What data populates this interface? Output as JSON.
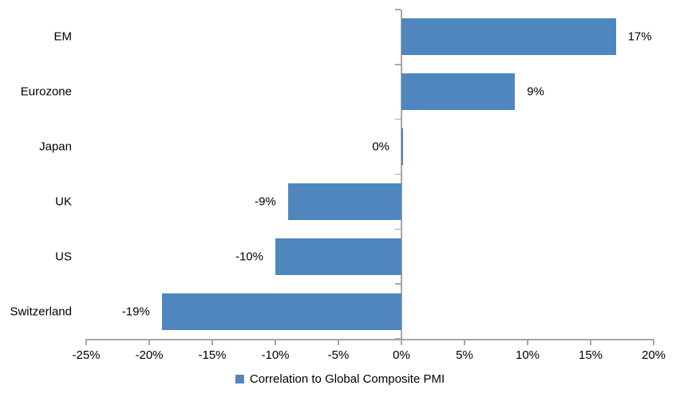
{
  "chart_data": {
    "type": "bar",
    "orientation": "horizontal",
    "title": "",
    "series_name": "Correlation to Global Composite PMI",
    "categories": [
      "EM",
      "Eurozone",
      "Japan",
      "UK",
      "US",
      "Switzerland"
    ],
    "values": [
      17,
      9,
      0,
      -9,
      -10,
      -19
    ],
    "value_labels": [
      "17%",
      "9%",
      "0%",
      "-9%",
      "-10%",
      "-19%"
    ],
    "xlim": [
      -25,
      20
    ],
    "x_tick_values": [
      -25,
      -20,
      -15,
      -10,
      -5,
      0,
      5,
      10,
      15,
      20
    ],
    "x_tick_labels": [
      "-25%",
      "-20%",
      "-15%",
      "-10%",
      "-5%",
      "0%",
      "5%",
      "10%",
      "15%",
      "20%"
    ],
    "grid": false,
    "legend_position": "bottom-center",
    "colors": {
      "bar": "#4E86BD",
      "axis": "#A6A6A6",
      "text": "#000000",
      "background": "#FFFFFF"
    }
  },
  "legend": {
    "label": "Correlation to Global Composite PMI"
  }
}
